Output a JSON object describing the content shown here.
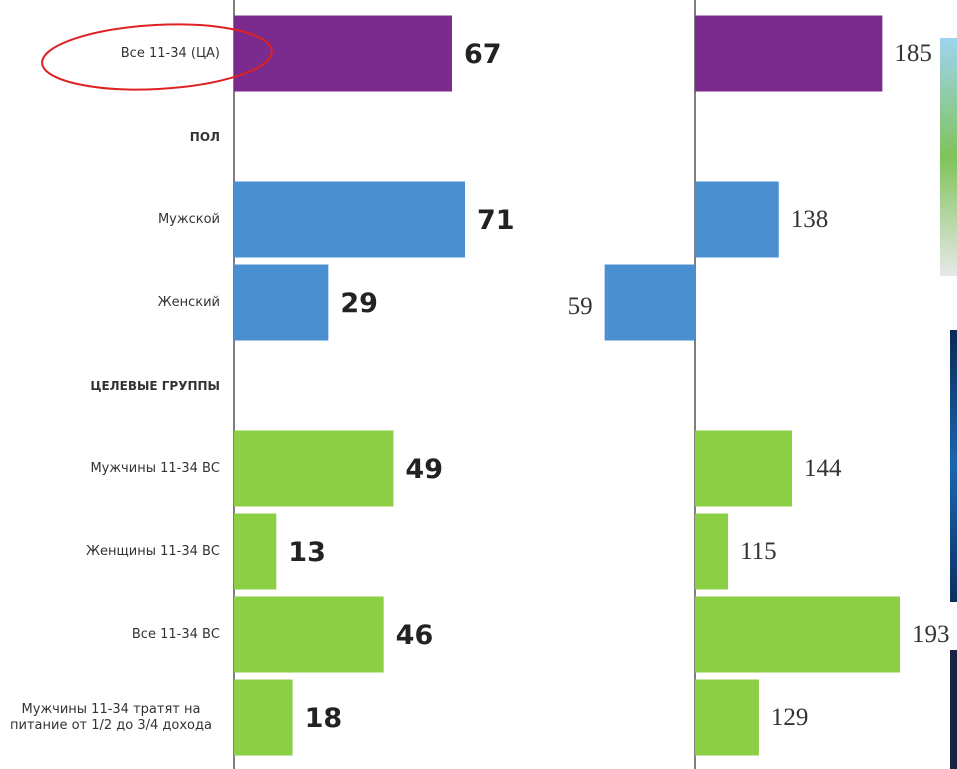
{
  "chart_data": [
    {
      "type": "bar",
      "categories": [
        "Все 11-34 (ЦА)",
        "ПОЛ",
        "Мужской",
        "Женский",
        "ЦЕЛЕВЫЕ ГРУППЫ",
        "Мужчины 11-34 ВС",
        "Женщины 11-34 ВС",
        "Все 11-34 ВС",
        "Мужчины 11-34 тратят на питание от 1/2 до 3/4 дохода"
      ],
      "values": [
        67,
        null,
        71,
        29,
        null,
        49,
        13,
        46,
        18
      ],
      "colors": [
        "#7b2a8e",
        null,
        "#4a90d0",
        "#4a90d0",
        null,
        "#8ccf45",
        "#8ccf45",
        "#8ccf45",
        "#8ccf45"
      ]
    },
    {
      "type": "bar",
      "baseline": 100,
      "values": [
        185,
        null,
        138,
        59,
        null,
        144,
        115,
        193,
        129
      ],
      "colors": [
        "#7b2a8e",
        null,
        "#4a90d0",
        "#4a90d0",
        null,
        "#8ccf45",
        "#8ccf45",
        "#8ccf45",
        "#8ccf45"
      ]
    }
  ]
}
